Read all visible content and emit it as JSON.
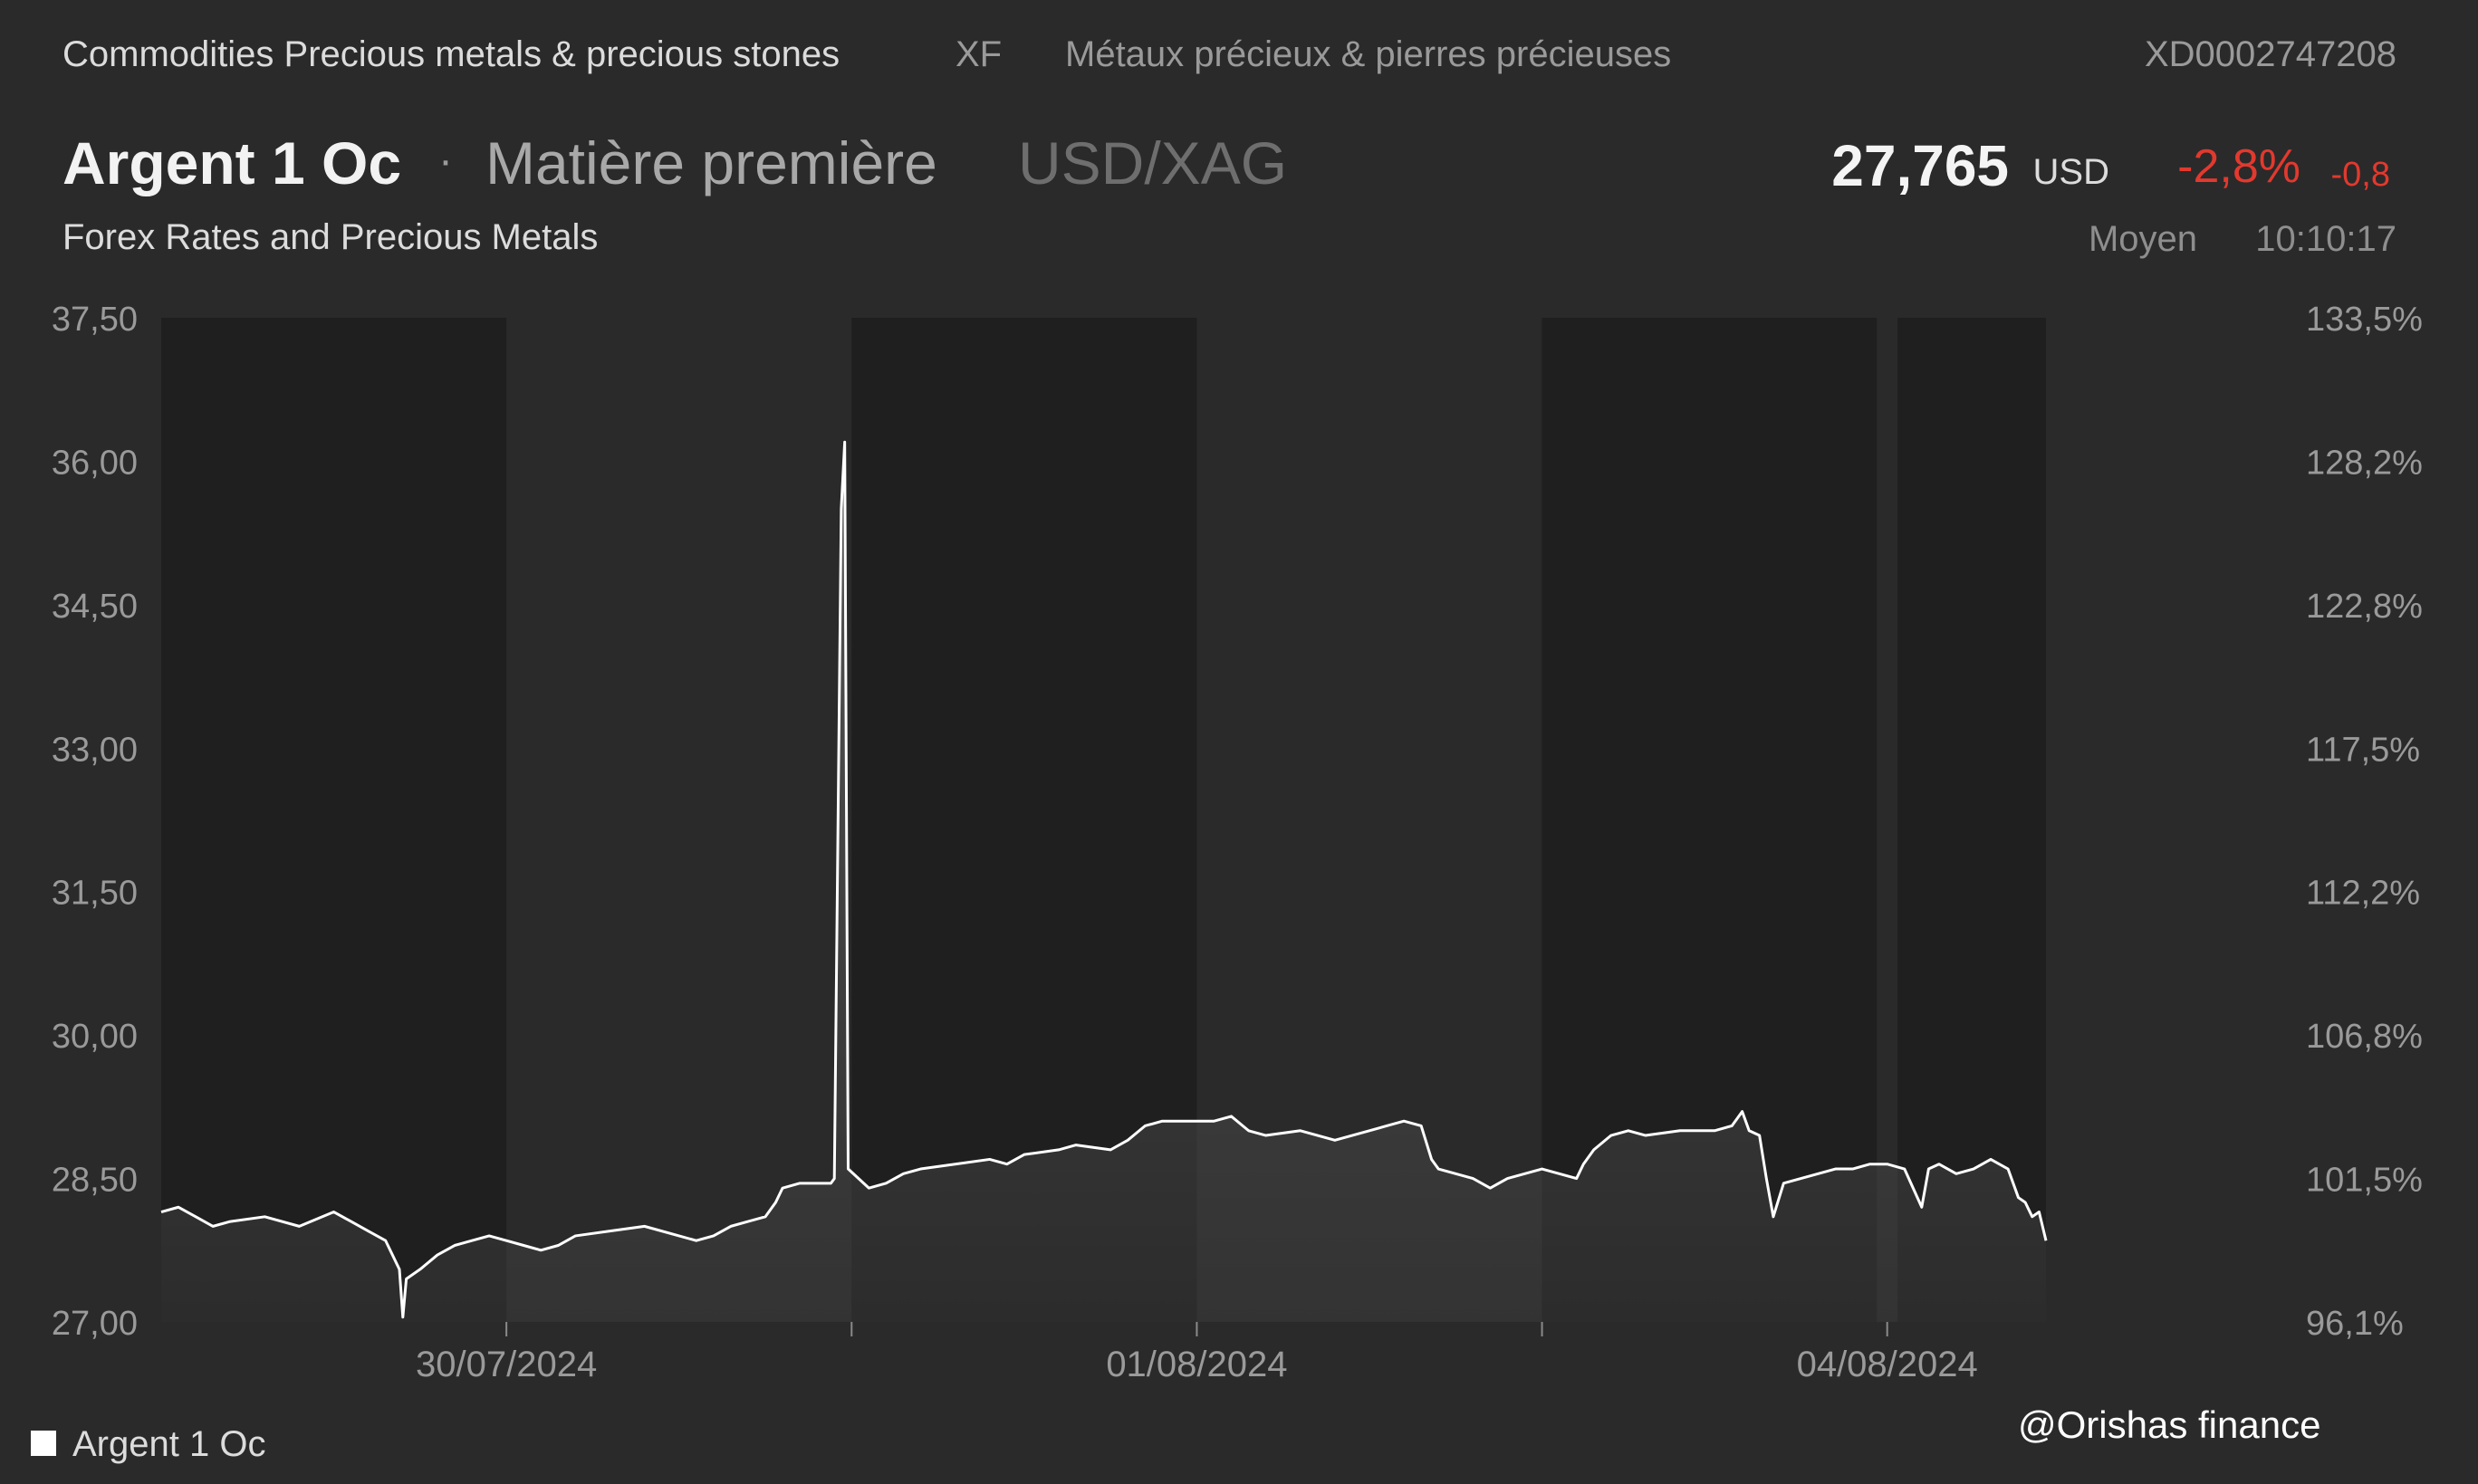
{
  "header": {
    "breadcrumb": "Commodities Precious metals & precious stones",
    "exchange": "XF",
    "category_fr": "Métaux précieux & pierres précieuses",
    "isin": "XD0002747208"
  },
  "instrument": {
    "name": "Argent 1 Oc",
    "separator": "·",
    "type": "Matière première",
    "pair": "USD/XAG",
    "source": "Forex Rates and Precious Metals"
  },
  "quote": {
    "price": "27,765",
    "currency": "USD",
    "change_pct": "-2,8%",
    "change_abs": "-0,8",
    "price_type": "Moyen",
    "time": "10:10:17"
  },
  "colors": {
    "background": "#2a2a2a",
    "night_band": "#1f1f1f",
    "line": "#ffffff",
    "negative": "#e2392e"
  },
  "chart_data": {
    "type": "area",
    "title": "",
    "xlabel": "",
    "ylabel": "",
    "ylim": [
      27.0,
      37.5
    ],
    "y_ticks": [
      "37,50",
      "36,00",
      "34,50",
      "33,00",
      "31,50",
      "30,00",
      "28,50",
      "27,00"
    ],
    "y2_ticks": [
      "133,5%",
      "128,2%",
      "122,8%",
      "117,5%",
      "112,2%",
      "106,8%",
      "101,5%",
      "96,1%"
    ],
    "x_range": [
      0,
      6.15
    ],
    "x_ticks": [
      {
        "x": 1.0,
        "label": "30/07/2024"
      },
      {
        "x": 2.0,
        "label": ""
      },
      {
        "x": 3.0,
        "label": "01/08/2024"
      },
      {
        "x": 4.0,
        "label": ""
      },
      {
        "x": 5.0,
        "label": "04/08/2024"
      }
    ],
    "shaded_intervals": [
      [
        0,
        1.0
      ],
      [
        2.0,
        3.0
      ],
      [
        4.0,
        4.97
      ],
      [
        5.03,
        5.46
      ]
    ],
    "grid": false,
    "legend_position": "bottom-left",
    "series": [
      {
        "name": "Argent 1 Oc",
        "points": [
          [
            0.0,
            28.15
          ],
          [
            0.05,
            28.2
          ],
          [
            0.1,
            28.1
          ],
          [
            0.15,
            28.0
          ],
          [
            0.2,
            28.05
          ],
          [
            0.3,
            28.1
          ],
          [
            0.4,
            28.0
          ],
          [
            0.5,
            28.15
          ],
          [
            0.55,
            28.05
          ],
          [
            0.6,
            27.95
          ],
          [
            0.65,
            27.85
          ],
          [
            0.69,
            27.55
          ],
          [
            0.7,
            27.05
          ],
          [
            0.71,
            27.45
          ],
          [
            0.75,
            27.55
          ],
          [
            0.8,
            27.7
          ],
          [
            0.85,
            27.8
          ],
          [
            0.9,
            27.85
          ],
          [
            0.95,
            27.9
          ],
          [
            1.0,
            27.85
          ],
          [
            1.05,
            27.8
          ],
          [
            1.1,
            27.75
          ],
          [
            1.15,
            27.8
          ],
          [
            1.2,
            27.9
          ],
          [
            1.3,
            27.95
          ],
          [
            1.4,
            28.0
          ],
          [
            1.5,
            27.9
          ],
          [
            1.55,
            27.85
          ],
          [
            1.6,
            27.9
          ],
          [
            1.65,
            28.0
          ],
          [
            1.7,
            28.05
          ],
          [
            1.75,
            28.1
          ],
          [
            1.78,
            28.25
          ],
          [
            1.8,
            28.4
          ],
          [
            1.85,
            28.45
          ],
          [
            1.9,
            28.45
          ],
          [
            1.94,
            28.45
          ],
          [
            1.95,
            28.5
          ],
          [
            1.96,
            32.0
          ],
          [
            1.97,
            35.5
          ],
          [
            1.98,
            36.2
          ],
          [
            1.99,
            28.6
          ],
          [
            2.05,
            28.4
          ],
          [
            2.1,
            28.45
          ],
          [
            2.15,
            28.55
          ],
          [
            2.2,
            28.6
          ],
          [
            2.3,
            28.65
          ],
          [
            2.4,
            28.7
          ],
          [
            2.45,
            28.65
          ],
          [
            2.5,
            28.75
          ],
          [
            2.6,
            28.8
          ],
          [
            2.65,
            28.85
          ],
          [
            2.75,
            28.8
          ],
          [
            2.8,
            28.9
          ],
          [
            2.85,
            29.05
          ],
          [
            2.9,
            29.1
          ],
          [
            3.0,
            29.1
          ],
          [
            3.05,
            29.1
          ],
          [
            3.1,
            29.15
          ],
          [
            3.15,
            29.0
          ],
          [
            3.2,
            28.95
          ],
          [
            3.3,
            29.0
          ],
          [
            3.35,
            28.95
          ],
          [
            3.4,
            28.9
          ],
          [
            3.5,
            29.0
          ],
          [
            3.55,
            29.05
          ],
          [
            3.6,
            29.1
          ],
          [
            3.65,
            29.05
          ],
          [
            3.68,
            28.7
          ],
          [
            3.7,
            28.6
          ],
          [
            3.75,
            28.55
          ],
          [
            3.8,
            28.5
          ],
          [
            3.85,
            28.4
          ],
          [
            3.9,
            28.5
          ],
          [
            3.95,
            28.55
          ],
          [
            4.0,
            28.6
          ],
          [
            4.05,
            28.55
          ],
          [
            4.1,
            28.5
          ],
          [
            4.12,
            28.65
          ],
          [
            4.15,
            28.8
          ],
          [
            4.2,
            28.95
          ],
          [
            4.25,
            29.0
          ],
          [
            4.3,
            28.95
          ],
          [
            4.4,
            29.0
          ],
          [
            4.5,
            29.0
          ],
          [
            4.55,
            29.05
          ],
          [
            4.58,
            29.2
          ],
          [
            4.6,
            29.0
          ],
          [
            4.63,
            28.95
          ],
          [
            4.65,
            28.5
          ],
          [
            4.67,
            28.1
          ],
          [
            4.7,
            28.45
          ],
          [
            4.75,
            28.5
          ],
          [
            4.8,
            28.55
          ],
          [
            4.85,
            28.6
          ],
          [
            4.9,
            28.6
          ],
          [
            4.95,
            28.65
          ],
          [
            5.0,
            28.65
          ],
          [
            5.05,
            28.6
          ],
          [
            5.1,
            28.2
          ],
          [
            5.12,
            28.6
          ],
          [
            5.15,
            28.65
          ],
          [
            5.2,
            28.55
          ],
          [
            5.25,
            28.6
          ],
          [
            5.3,
            28.7
          ],
          [
            5.35,
            28.6
          ],
          [
            5.38,
            28.3
          ],
          [
            5.4,
            28.25
          ],
          [
            5.42,
            28.1
          ],
          [
            5.44,
            28.15
          ],
          [
            5.46,
            27.85
          ]
        ]
      }
    ]
  },
  "legend": {
    "label": "Argent 1 Oc"
  },
  "watermark": "@Orishas finance"
}
